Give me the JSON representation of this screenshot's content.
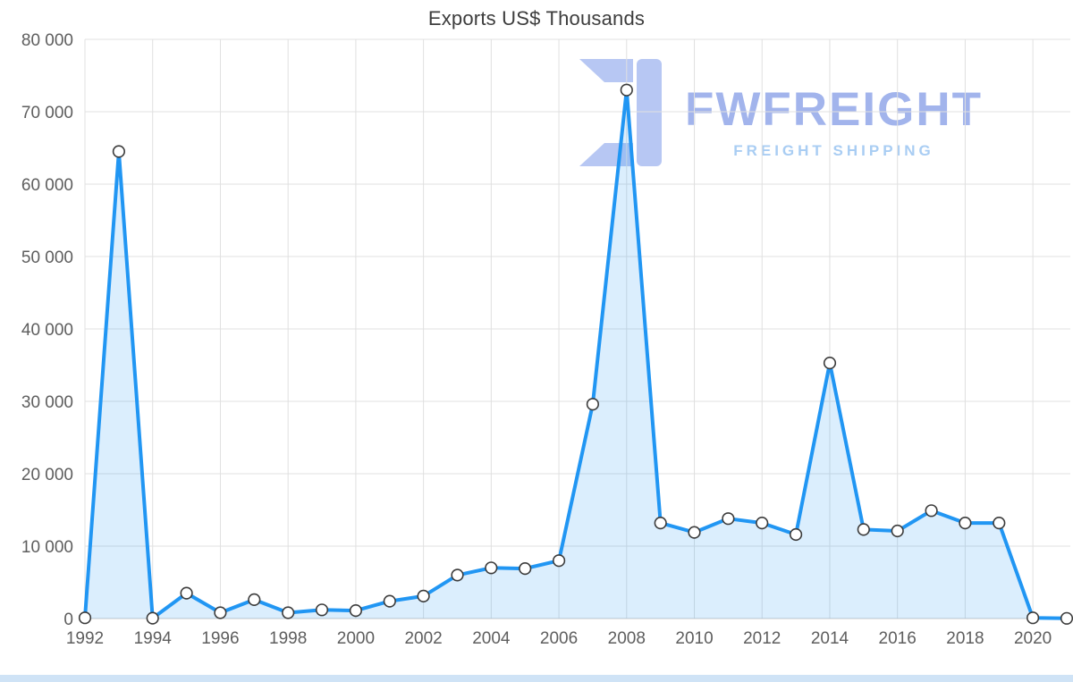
{
  "page": {
    "title": "Exports US$ Thousands"
  },
  "watermark": {
    "brand": "FWFREIGHT",
    "tagline": "FREIGHT SHIPPING",
    "logo_icon": "fwfreight-logo-icon",
    "brand_color": "#a2b4ec",
    "tagline_color": "#a9cdf3",
    "logo_color": "#b7c7f3"
  },
  "chart_data": {
    "type": "area",
    "title": "Exports US$ Thousands",
    "xlabel": "",
    "ylabel": "",
    "x": [
      1992,
      1993,
      1994,
      1995,
      1996,
      1997,
      1998,
      1999,
      2000,
      2001,
      2002,
      2003,
      2004,
      2005,
      2006,
      2007,
      2008,
      2009,
      2010,
      2011,
      2012,
      2013,
      2014,
      2015,
      2016,
      2017,
      2018,
      2019,
      2020,
      2021
    ],
    "values": [
      100,
      64500,
      50,
      3500,
      800,
      2600,
      800,
      1200,
      1100,
      2400,
      3100,
      6000,
      7000,
      6900,
      8000,
      29600,
      73000,
      13200,
      11900,
      13800,
      13200,
      11600,
      35300,
      12300,
      12100,
      14900,
      13200,
      13200,
      100,
      30
    ],
    "ylim": [
      0,
      80000
    ],
    "y_ticks": [
      0,
      10000,
      20000,
      30000,
      40000,
      50000,
      60000,
      70000,
      80000
    ],
    "y_tick_labels": [
      "0",
      "10 000",
      "20 000",
      "30 000",
      "40 000",
      "50 000",
      "60 000",
      "70 000",
      "80 000"
    ],
    "x_tick_years": [
      1992,
      1994,
      1996,
      1998,
      2000,
      2002,
      2004,
      2006,
      2008,
      2010,
      2012,
      2014,
      2016,
      2018,
      2020
    ],
    "grid": true,
    "legend": "none",
    "marker": "circle",
    "colors": {
      "line": "#2196f3",
      "area": "rgba(33,150,243,0.16)",
      "marker_fill": "#ffffff",
      "marker_stroke": "#3b3b3b",
      "grid": "#e0e0e0",
      "axis_line": "#c8c8c8",
      "axis_text": "#5e5e5e",
      "title_text": "#3d3d3d"
    }
  }
}
